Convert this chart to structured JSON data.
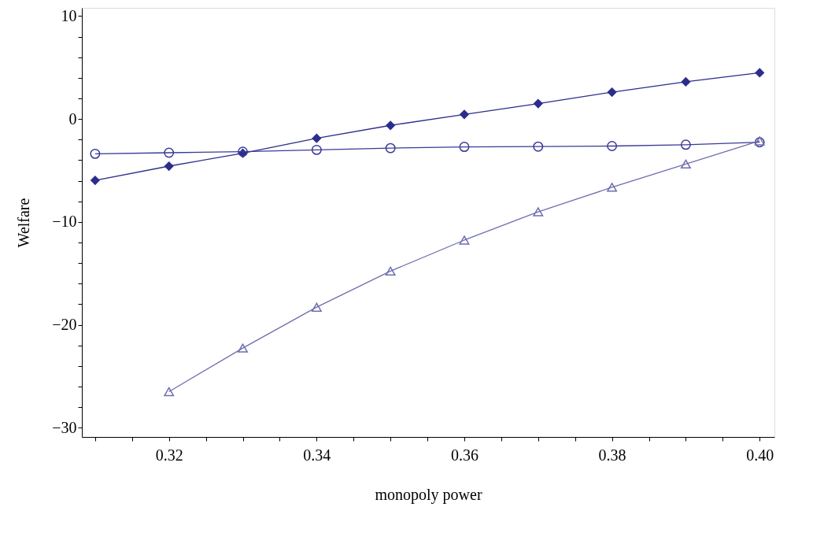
{
  "chart_data": {
    "type": "line",
    "xlabel": "monopoly power",
    "ylabel": "Welfare",
    "x": [
      0.31,
      0.32,
      0.33,
      0.34,
      0.35,
      0.36,
      0.37,
      0.38,
      0.39,
      0.4
    ],
    "xlim": [
      0.3082,
      0.402
    ],
    "ylim": [
      -30.9,
      10.8
    ],
    "xticks": [
      {
        "value": 0.31,
        "label": null
      },
      {
        "value": 0.315,
        "label": null
      },
      0.32,
      {
        "value": 0.325,
        "label": null
      },
      {
        "value": 0.33,
        "label": null
      },
      {
        "value": 0.335,
        "label": null
      },
      0.34,
      {
        "value": 0.345,
        "label": null
      },
      {
        "value": 0.35,
        "label": null
      },
      {
        "value": 0.355,
        "label": null
      },
      0.36,
      {
        "value": 0.365,
        "label": null
      },
      {
        "value": 0.37,
        "label": null
      },
      {
        "value": 0.375,
        "label": null
      },
      0.38,
      {
        "value": 0.385,
        "label": null
      },
      {
        "value": 0.39,
        "label": null
      },
      {
        "value": 0.395,
        "label": null
      },
      {
        "value": 0.4,
        "label": "0.40"
      }
    ],
    "yticks": [
      {
        "value": -30,
        "label": "−30"
      },
      {
        "value": -28,
        "label": null
      },
      {
        "value": -26,
        "label": null
      },
      {
        "value": -24,
        "label": null
      },
      {
        "value": -22,
        "label": null
      },
      {
        "value": -20,
        "label": "−20"
      },
      {
        "value": -18,
        "label": null
      },
      {
        "value": -16,
        "label": null
      },
      {
        "value": -14,
        "label": null
      },
      {
        "value": -12,
        "label": null
      },
      {
        "value": -10,
        "label": "−10"
      },
      {
        "value": -8,
        "label": null
      },
      {
        "value": -6,
        "label": null
      },
      {
        "value": -4,
        "label": null
      },
      {
        "value": -2,
        "label": null
      },
      0,
      {
        "value": 2,
        "label": null
      },
      {
        "value": 4,
        "label": null
      },
      {
        "value": 6,
        "label": null
      },
      {
        "value": 8,
        "label": null
      },
      10
    ],
    "grid": false,
    "line_style": "solid",
    "series": [
      {
        "color": "#2b2d8c",
        "marker": "diamond",
        "values": [
          -5.96,
          -4.58,
          -3.33,
          -1.88,
          -0.62,
          0.45,
          1.5,
          2.61,
          3.61,
          4.49
        ]
      },
      {
        "color": "#3a3a96",
        "marker": "circle",
        "values": [
          -3.38,
          -3.28,
          -3.18,
          -3.0,
          -2.83,
          -2.71,
          -2.68,
          -2.63,
          -2.5,
          -2.26
        ]
      },
      {
        "color": "#6e6eae",
        "marker": "triangle",
        "values": [
          null,
          -26.5,
          -22.26,
          -18.29,
          -14.78,
          -11.77,
          -9.02,
          -6.64,
          -4.38,
          -2.13
        ]
      }
    ]
  }
}
